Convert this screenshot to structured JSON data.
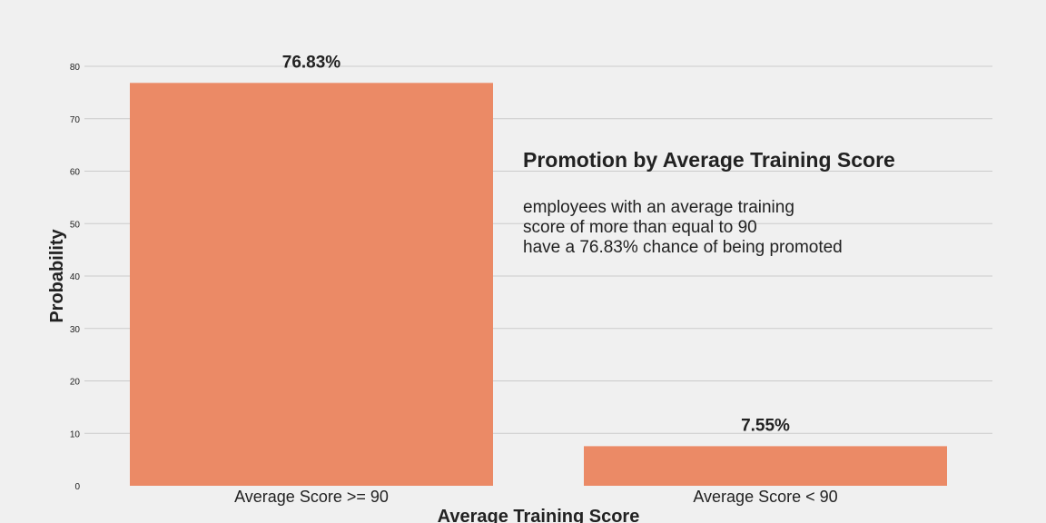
{
  "chart_data": {
    "type": "bar",
    "title": "",
    "xlabel": "Average Training Score",
    "ylabel": "Probability",
    "categories": [
      "Average Score >= 90",
      "Average Score < 90"
    ],
    "values": [
      76.83,
      7.55
    ],
    "value_labels": [
      "76.83%",
      "7.55%"
    ],
    "ylim": [
      0,
      80
    ],
    "yticks": [
      0,
      10,
      20,
      30,
      40,
      50,
      60,
      70,
      80
    ],
    "grid": "horizontal",
    "bar_color": "#eb8a66",
    "annotation": {
      "title": "Promotion by Average Training Score",
      "lines": [
        "employees with an average training",
        "score of more than equal to 90",
        "have a 76.83% chance of being promoted"
      ]
    }
  }
}
